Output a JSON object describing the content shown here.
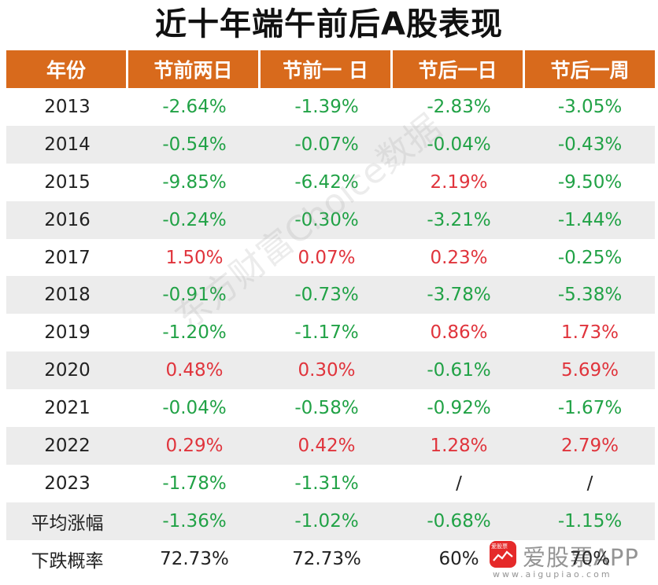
{
  "title": "近十年端午前后A股表现",
  "watermark": "东方财富Choice数据",
  "brand": {
    "logo_text": "爱股票",
    "name": "爱股票APP",
    "url": "www.aigupiao.com"
  },
  "colors": {
    "header_bg": "#d86a1c",
    "negative": "#21a246",
    "positive": "#e0343c",
    "stripe": "#ececec"
  },
  "chart_data": {
    "type": "table",
    "columns": [
      "年份",
      "节前两日",
      "节前一 日",
      "节后一日",
      "节后一周"
    ],
    "rows": [
      {
        "label": "2013",
        "values": [
          "-2.64%",
          "-1.39%",
          "-2.83%",
          "-3.05%"
        ]
      },
      {
        "label": "2014",
        "values": [
          "-0.54%",
          "-0.07%",
          "-0.04%",
          "-0.43%"
        ]
      },
      {
        "label": "2015",
        "values": [
          "-9.85%",
          "-6.42%",
          "2.19%",
          "-9.50%"
        ]
      },
      {
        "label": "2016",
        "values": [
          "-0.24%",
          "-0.30%",
          "-3.21%",
          "-1.44%"
        ]
      },
      {
        "label": "2017",
        "values": [
          "1.50%",
          "0.07%",
          "0.23%",
          "-0.25%"
        ]
      },
      {
        "label": "2018",
        "values": [
          "-0.91%",
          "-0.73%",
          "-3.78%",
          "-5.38%"
        ]
      },
      {
        "label": "2019",
        "values": [
          "-1.20%",
          "-1.17%",
          "0.86%",
          "1.73%"
        ]
      },
      {
        "label": "2020",
        "values": [
          "0.48%",
          "0.30%",
          "-0.61%",
          "5.69%"
        ]
      },
      {
        "label": "2021",
        "values": [
          "-0.04%",
          "-0.58%",
          "-0.92%",
          "-1.67%"
        ]
      },
      {
        "label": "2022",
        "values": [
          "0.29%",
          "0.42%",
          "1.28%",
          "2.79%"
        ]
      },
      {
        "label": "2023",
        "values": [
          "-1.78%",
          "-1.31%",
          "/",
          "/"
        ]
      },
      {
        "label": "平均涨幅",
        "values": [
          "-1.36%",
          "-1.02%",
          "-0.68%",
          "-1.15%"
        ]
      },
      {
        "label": "下跌概率",
        "values": [
          "72.73%",
          "72.73%",
          "60%",
          "70%"
        ]
      }
    ]
  }
}
